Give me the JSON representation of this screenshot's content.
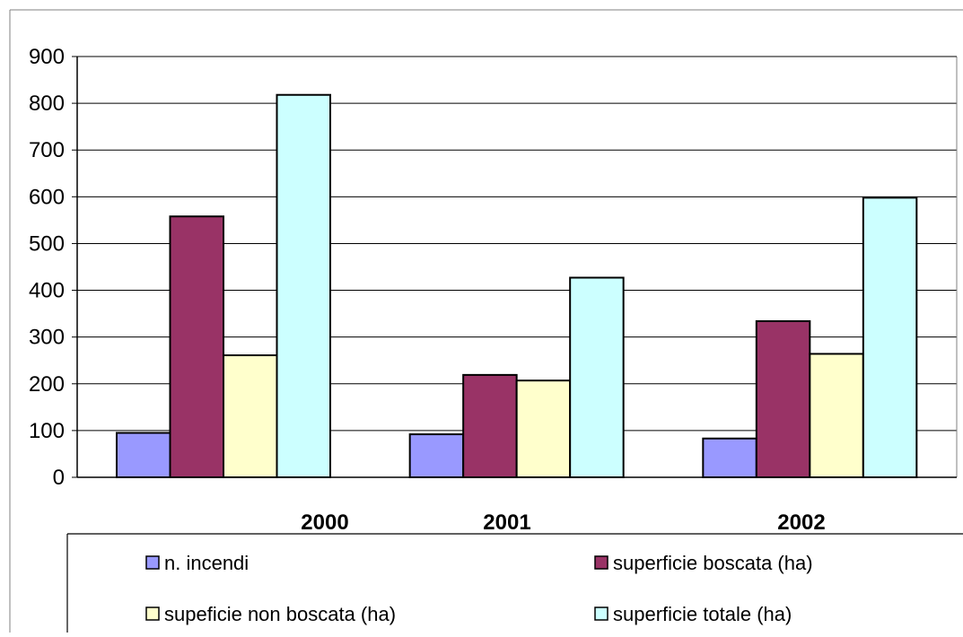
{
  "chart_data": {
    "type": "bar",
    "title": "",
    "xlabel": "",
    "ylabel": "",
    "categories": [
      "2000",
      "2001",
      "2002"
    ],
    "series": [
      {
        "name": "n. incendi",
        "color": "#9999ff",
        "values": [
          95,
          92,
          83
        ]
      },
      {
        "name": "superficie boscata (ha)",
        "color": "#993366",
        "values": [
          558,
          219,
          334
        ]
      },
      {
        "name": "supeficie non boscata (ha)",
        "color": "#ffffcc",
        "values": [
          261,
          207,
          264
        ]
      },
      {
        "name": "superficie totale (ha)",
        "color": "#ccffff",
        "values": [
          818,
          427,
          598
        ]
      }
    ],
    "ylim": [
      0,
      900
    ],
    "yticks": [
      "0",
      "100",
      "200",
      "300",
      "400",
      "500",
      "600",
      "700",
      "800",
      "900"
    ],
    "grid": true,
    "legend_position": "bottom"
  }
}
